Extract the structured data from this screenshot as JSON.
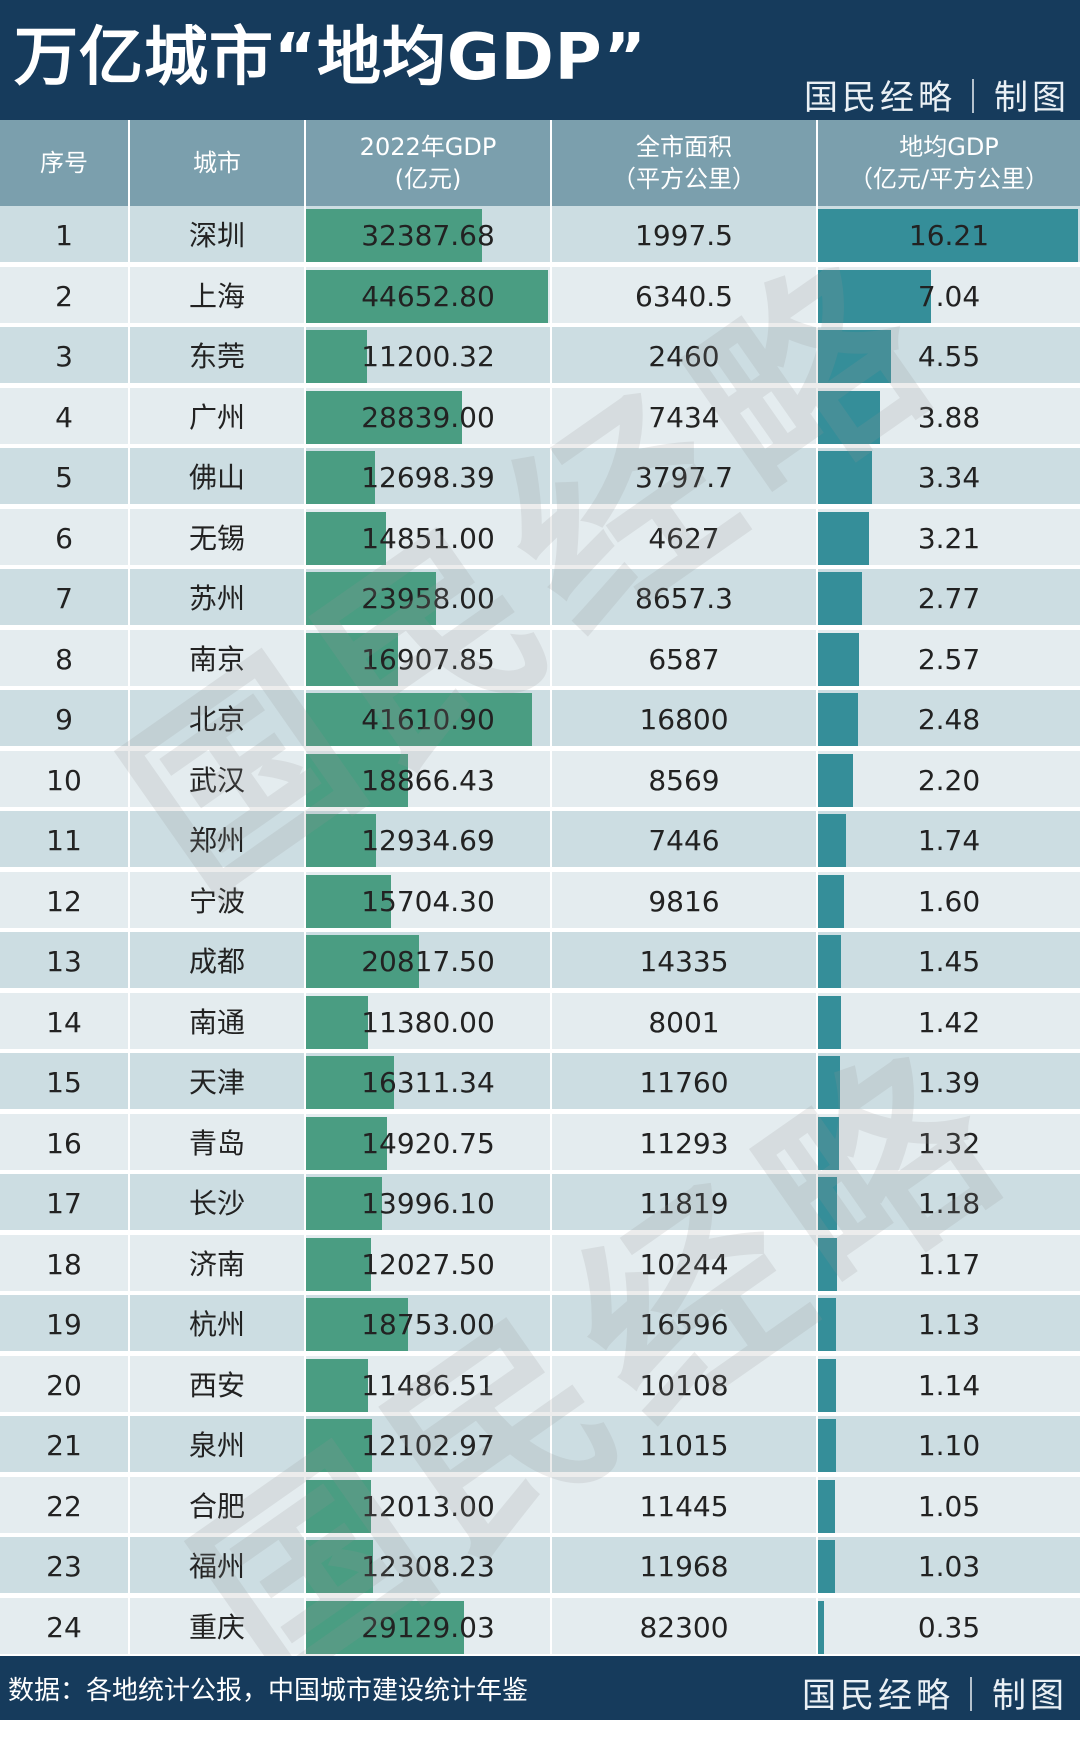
{
  "header": {
    "title": "万亿城市“地均GDP”",
    "brand": "国民经略｜制图"
  },
  "columns": {
    "rank": "序号",
    "city": "城市",
    "gdp_line1": "2022年GDP",
    "gdp_line2": "(亿元)",
    "area_line1": "全市面积",
    "area_line2": "（平方公里）",
    "density_line1": "地均GDP",
    "density_line2": "（亿元/平方公里）"
  },
  "colors": {
    "header_bg": "#163b5c",
    "table_head_bg": "#7b9fad",
    "gdp_bar": "#4a9d82",
    "density_bar": "#358e99",
    "row_odd": "#ccdde2",
    "row_even": "#e4ecef"
  },
  "chart_data": {
    "type": "table",
    "columns": [
      "序号",
      "城市",
      "2022年GDP (亿元)",
      "全市面积（平方公里）",
      "地均GDP（亿元/平方公里）"
    ],
    "rows": [
      {
        "rank": "1",
        "city": "深圳",
        "gdp": "32387.68",
        "area": "1997.5",
        "density": "16.21"
      },
      {
        "rank": "2",
        "city": "上海",
        "gdp": "44652.80",
        "area": "6340.5",
        "density": "7.04"
      },
      {
        "rank": "3",
        "city": "东莞",
        "gdp": "11200.32",
        "area": "2460",
        "density": "4.55"
      },
      {
        "rank": "4",
        "city": "广州",
        "gdp": "28839.00",
        "area": "7434",
        "density": "3.88"
      },
      {
        "rank": "5",
        "city": "佛山",
        "gdp": "12698.39",
        "area": "3797.7",
        "density": "3.34"
      },
      {
        "rank": "6",
        "city": "无锡",
        "gdp": "14851.00",
        "area": "4627",
        "density": "3.21"
      },
      {
        "rank": "7",
        "city": "苏州",
        "gdp": "23958.00",
        "area": "8657.3",
        "density": "2.77"
      },
      {
        "rank": "8",
        "city": "南京",
        "gdp": "16907.85",
        "area": "6587",
        "density": "2.57"
      },
      {
        "rank": "9",
        "city": "北京",
        "gdp": "41610.90",
        "area": "16800",
        "density": "2.48"
      },
      {
        "rank": "10",
        "city": "武汉",
        "gdp": "18866.43",
        "area": "8569",
        "density": "2.20"
      },
      {
        "rank": "11",
        "city": "郑州",
        "gdp": "12934.69",
        "area": "7446",
        "density": "1.74"
      },
      {
        "rank": "12",
        "city": "宁波",
        "gdp": "15704.30",
        "area": "9816",
        "density": "1.60"
      },
      {
        "rank": "13",
        "city": "成都",
        "gdp": "20817.50",
        "area": "14335",
        "density": "1.45"
      },
      {
        "rank": "14",
        "city": "南通",
        "gdp": "11380.00",
        "area": "8001",
        "density": "1.42"
      },
      {
        "rank": "15",
        "city": "天津",
        "gdp": "16311.34",
        "area": "11760",
        "density": "1.39"
      },
      {
        "rank": "16",
        "city": "青岛",
        "gdp": "14920.75",
        "area": "11293",
        "density": "1.32"
      },
      {
        "rank": "17",
        "city": "长沙",
        "gdp": "13996.10",
        "area": "11819",
        "density": "1.18"
      },
      {
        "rank": "18",
        "city": "济南",
        "gdp": "12027.50",
        "area": "10244",
        "density": "1.17"
      },
      {
        "rank": "19",
        "city": "杭州",
        "gdp": "18753.00",
        "area": "16596",
        "density": "1.13"
      },
      {
        "rank": "20",
        "city": "西安",
        "gdp": "11486.51",
        "area": "10108",
        "density": "1.14"
      },
      {
        "rank": "21",
        "city": "泉州",
        "gdp": "12102.97",
        "area": "11015",
        "density": "1.10"
      },
      {
        "rank": "22",
        "city": "合肥",
        "gdp": "12013.00",
        "area": "11445",
        "density": "1.05"
      },
      {
        "rank": "23",
        "city": "福州",
        "gdp": "12308.23",
        "area": "11968",
        "density": "1.03"
      },
      {
        "rank": "24",
        "city": "重庆",
        "gdp": "29129.03",
        "area": "82300",
        "density": "0.35"
      }
    ]
  },
  "watermark": "国民经略",
  "footer": {
    "source": "数据：各地统计公报，中国城市建设统计年鉴",
    "brand": "国民经略｜制图"
  }
}
